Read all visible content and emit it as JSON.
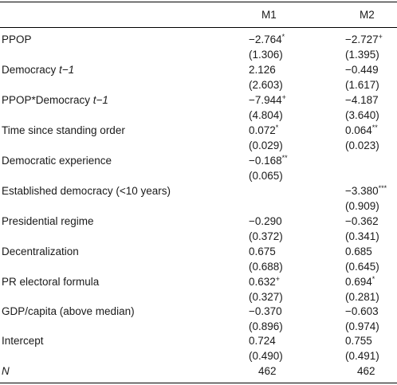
{
  "columns": [
    "M1",
    "M2"
  ],
  "rows": [
    {
      "label_main": "PPOP",
      "label_italic": "",
      "m1": "−2.764",
      "m1_sig": "*",
      "m1_se": "(1.306)",
      "m2": "−2.727",
      "m2_sig": "+",
      "m2_se": "(1.395)"
    },
    {
      "label_main": "Democracy ",
      "label_italic": "t−1",
      "m1": "2.126",
      "m1_sig": "",
      "m1_se": "(2.603)",
      "m2": "−0.449",
      "m2_sig": "",
      "m2_se": "(1.617)"
    },
    {
      "label_main": "PPOP*Democracy ",
      "label_italic": "t−1",
      "m1": "−7.944",
      "m1_sig": "+",
      "m1_se": "(4.804)",
      "m2": "−4.187",
      "m2_sig": "",
      "m2_se": "(3.640)"
    },
    {
      "label_main": "Time since standing order",
      "label_italic": "",
      "m1": "0.072",
      "m1_sig": "*",
      "m1_se": "(0.029)",
      "m2": "0.064",
      "m2_sig": "**",
      "m2_se": "(0.023)"
    },
    {
      "label_main": "Democratic experience",
      "label_italic": "",
      "m1": "−0.168",
      "m1_sig": "**",
      "m1_se": "(0.065)",
      "m2": "",
      "m2_sig": "",
      "m2_se": ""
    },
    {
      "label_main": "Established democracy (<10 years)",
      "label_italic": "",
      "m1": "",
      "m1_sig": "",
      "m1_se": "",
      "m2": "−3.380",
      "m2_sig": "***",
      "m2_se": "(0.909)"
    },
    {
      "label_main": "Presidential regime",
      "label_italic": "",
      "m1": "−0.290",
      "m1_sig": "",
      "m1_se": "(0.372)",
      "m2": "−0.362",
      "m2_sig": "",
      "m2_se": "(0.341)"
    },
    {
      "label_main": "Decentralization",
      "label_italic": "",
      "m1": "0.675",
      "m1_sig": "",
      "m1_se": "(0.688)",
      "m2": "0.685",
      "m2_sig": "",
      "m2_se": "(0.645)"
    },
    {
      "label_main": "PR electoral formula",
      "label_italic": "",
      "m1": "0.632",
      "m1_sig": "+",
      "m1_se": "(0.327)",
      "m2": "0.694",
      "m2_sig": "*",
      "m2_se": "(0.281)"
    },
    {
      "label_main": "GDP/capita (above median)",
      "label_italic": "",
      "m1": "−0.370",
      "m1_sig": "",
      "m1_se": "(0.896)",
      "m2": "−0.603",
      "m2_sig": "",
      "m2_se": "(0.974)"
    },
    {
      "label_main": "Intercept",
      "label_italic": "",
      "m1": "0.724",
      "m1_sig": "",
      "m1_se": "(0.490)",
      "m2": "0.755",
      "m2_sig": "",
      "m2_se": "(0.491)"
    },
    {
      "label_main": "",
      "label_italic": "N",
      "m1": "462",
      "m1_sig": "",
      "m1_se": "",
      "m2": "462",
      "m2_sig": "",
      "m2_se": ""
    }
  ]
}
